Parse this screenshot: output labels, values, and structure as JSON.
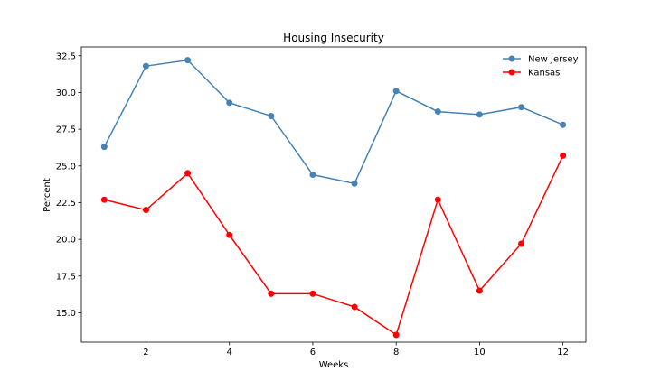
{
  "chart_data": {
    "type": "line",
    "title": "Housing Insecurity",
    "xlabel": "Weeks",
    "ylabel": "Percent",
    "xlim": [
      0.45,
      12.55
    ],
    "ylim": [
      13.0,
      33.1
    ],
    "xticks": [
      2,
      4,
      6,
      8,
      10,
      12
    ],
    "xtick_labels": [
      "2",
      "4",
      "6",
      "8",
      "10",
      "12"
    ],
    "yticks": [
      15.0,
      17.5,
      20.0,
      22.5,
      25.0,
      27.5,
      30.0,
      32.5
    ],
    "ytick_labels": [
      "15.0",
      "17.5",
      "20.0",
      "22.5",
      "25.0",
      "27.5",
      "30.0",
      "32.5"
    ],
    "grid": false,
    "legend_position": "top-right",
    "x": [
      1,
      2,
      3,
      4,
      5,
      6,
      7,
      8,
      9,
      10,
      11,
      12
    ],
    "series": [
      {
        "name": "New Jersey",
        "color": "#4682b4",
        "marker": "circle",
        "values": [
          26.3,
          31.8,
          32.2,
          29.3,
          28.4,
          24.4,
          23.8,
          30.1,
          28.7,
          28.5,
          29.0,
          27.8
        ]
      },
      {
        "name": "Kansas",
        "color": "#ff0000",
        "marker": "circle",
        "values": [
          22.7,
          22.0,
          24.5,
          20.3,
          16.3,
          16.3,
          15.4,
          13.5,
          22.7,
          16.5,
          19.7,
          25.7
        ]
      }
    ]
  }
}
